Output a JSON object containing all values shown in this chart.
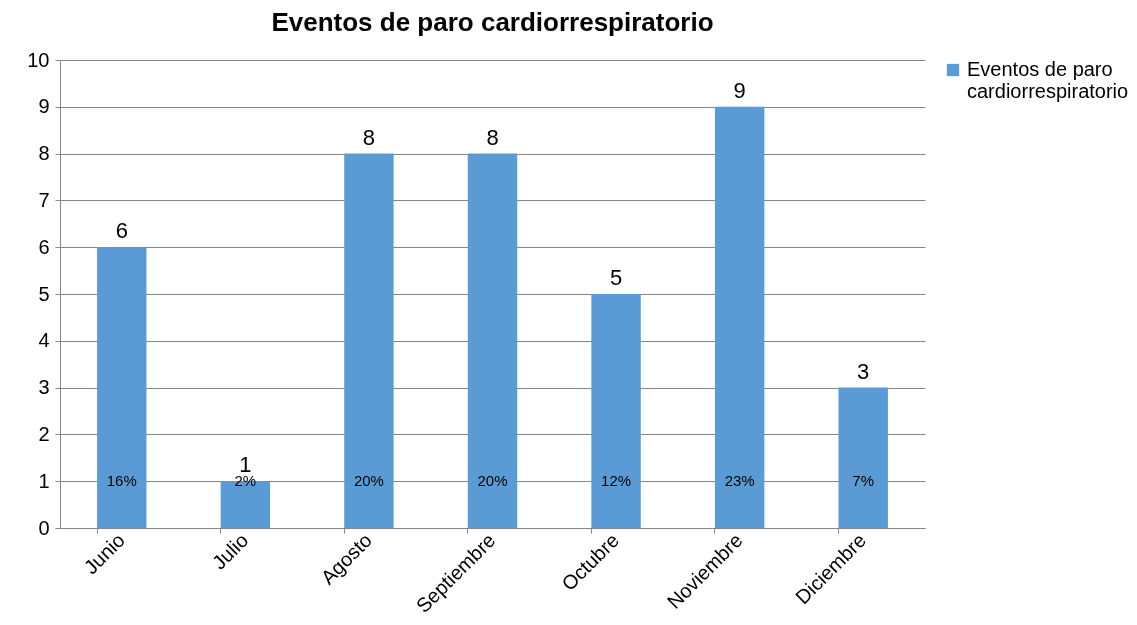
{
  "chart_data": {
    "type": "bar",
    "title": "Eventos de paro cardiorrespiratorio",
    "categories": [
      "Junio",
      "Julio",
      "Agosto",
      "Septiembre",
      "Octubre",
      "Noviembre",
      "Diciembre"
    ],
    "series": [
      {
        "name": "Eventos de paro cardiorrespiratorio",
        "color": "#5b9bd5",
        "values": [
          6,
          1,
          8,
          8,
          5,
          9,
          3
        ]
      }
    ],
    "ylim": [
      0,
      10
    ],
    "yticks": [
      0,
      1,
      2,
      3,
      4,
      5,
      6,
      7,
      8,
      9,
      10
    ],
    "grid": "y",
    "legend": "right",
    "data_labels": true,
    "annotations": [
      "16%",
      "2%",
      "20%",
      "20%",
      "12%",
      "23%",
      "7%"
    ]
  }
}
